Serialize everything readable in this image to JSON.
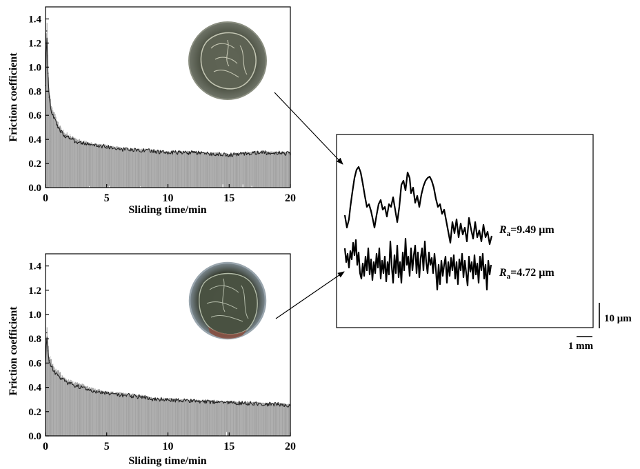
{
  "chart_data": [
    {
      "type": "line",
      "xlabel": "Sliding time/min",
      "ylabel": "Friction coefficient",
      "xlim": [
        0,
        20
      ],
      "ylim": [
        0,
        1.5
      ],
      "x_ticks": [
        "0",
        "5",
        "10",
        "15",
        "20"
      ],
      "y_ticks": [
        "0.0",
        "0.2",
        "0.4",
        "0.6",
        "0.8",
        "1.0",
        "1.2",
        "1.4"
      ],
      "grid": false,
      "inset": "wear-scar-photo",
      "series": [
        {
          "x": [
            0,
            0.1,
            0.2,
            0.3,
            0.5,
            0.7,
            1,
            1.3,
            1.6,
            2,
            2.5,
            3,
            3.5,
            4,
            5,
            6,
            7,
            8,
            9,
            10,
            11,
            12,
            13,
            14,
            15,
            16,
            17,
            18,
            19,
            20
          ],
          "y": [
            0.85,
            1.3,
            0.95,
            0.75,
            0.62,
            0.58,
            0.5,
            0.46,
            0.43,
            0.41,
            0.38,
            0.37,
            0.36,
            0.35,
            0.34,
            0.32,
            0.31,
            0.31,
            0.3,
            0.29,
            0.29,
            0.29,
            0.28,
            0.28,
            0.27,
            0.28,
            0.29,
            0.29,
            0.29,
            0.28
          ]
        }
      ]
    },
    {
      "type": "line",
      "xlabel": "Sliding time/min",
      "ylabel": "Friction coefficient",
      "xlim": [
        0,
        20
      ],
      "ylim": [
        0,
        1.5
      ],
      "x_ticks": [
        "0",
        "5",
        "10",
        "15",
        "20"
      ],
      "y_ticks": [
        "0.0",
        "0.2",
        "0.4",
        "0.6",
        "0.8",
        "1.0",
        "1.2",
        "1.4"
      ],
      "grid": false,
      "inset": "wear-scar-photo",
      "series": [
        {
          "x": [
            0,
            0.1,
            0.2,
            0.3,
            0.5,
            0.7,
            1,
            1.3,
            1.6,
            2,
            2.5,
            3,
            3.5,
            4,
            5,
            6,
            7,
            8,
            9,
            10,
            11,
            12,
            13,
            14,
            15,
            16,
            17,
            18,
            19,
            20
          ],
          "y": [
            0.6,
            0.85,
            0.7,
            0.62,
            0.57,
            0.53,
            0.5,
            0.47,
            0.45,
            0.43,
            0.41,
            0.4,
            0.38,
            0.37,
            0.35,
            0.34,
            0.33,
            0.32,
            0.3,
            0.3,
            0.29,
            0.29,
            0.28,
            0.28,
            0.27,
            0.27,
            0.27,
            0.26,
            0.26,
            0.25
          ]
        }
      ]
    }
  ],
  "profiles": {
    "labels": [
      {
        "symbol": "R",
        "sub": "a",
        "value": "=9.49 μm"
      },
      {
        "symbol": "R",
        "sub": "a",
        "value": "=4.72 μm"
      }
    ],
    "vertical_scale": "10 μm",
    "horizontal_scale": "1 mm"
  }
}
